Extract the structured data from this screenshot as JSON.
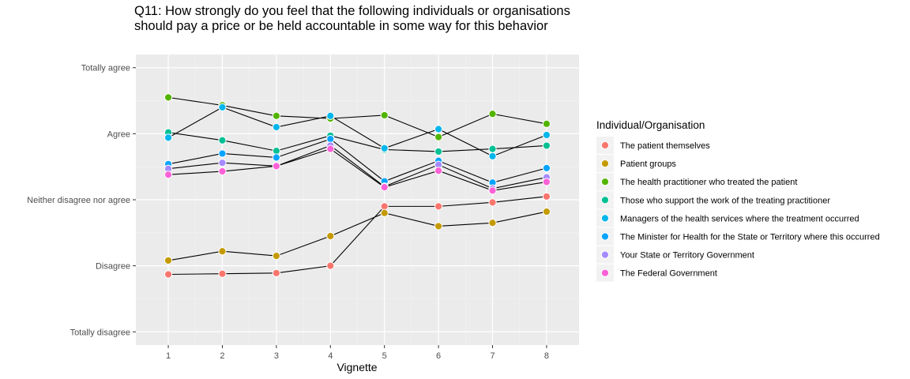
{
  "chart_data": {
    "type": "line",
    "title": "Q11: How strongly do you feel that the following individuals or organisations should pay a price or be held accountable in some way for this behavior",
    "xlabel": "Vignette",
    "ylabel": "",
    "x": [
      1,
      2,
      3,
      4,
      5,
      6,
      7,
      8
    ],
    "xlim": [
      0.4,
      8.6
    ],
    "ylim": [
      0.8,
      5.2
    ],
    "y_ticks": [
      {
        "value": 1,
        "label": "Totally disagree"
      },
      {
        "value": 2,
        "label": "Disagree"
      },
      {
        "value": 3,
        "label": "Neither disagree nor agree"
      },
      {
        "value": 4,
        "label": "Agree"
      },
      {
        "value": 5,
        "label": "Totally agree"
      }
    ],
    "grid": true,
    "legend": {
      "title": "Individual/Organisation",
      "placement": "right"
    },
    "series": [
      {
        "name": "The patient themselves",
        "color": "#F8766D",
        "values": [
          1.87,
          1.88,
          1.89,
          2.0,
          2.9,
          2.9,
          2.96,
          3.05
        ]
      },
      {
        "name": "Patient groups",
        "color": "#C49A00",
        "values": [
          2.08,
          2.22,
          2.15,
          2.45,
          2.8,
          2.6,
          2.65,
          2.82
        ]
      },
      {
        "name": "The health practitioner who treated the patient",
        "color": "#53B400",
        "values": [
          4.55,
          4.43,
          4.27,
          4.23,
          4.28,
          3.95,
          4.3,
          4.15
        ]
      },
      {
        "name": "Those who support the work of the treating practitioner",
        "color": "#00C094",
        "values": [
          4.02,
          3.9,
          3.74,
          3.97,
          3.76,
          3.73,
          3.77,
          3.82
        ]
      },
      {
        "name": "Managers of the health services where the treatment occurred",
        "color": "#00B6EB",
        "values": [
          3.94,
          4.4,
          4.1,
          4.27,
          3.78,
          4.07,
          3.66,
          3.98
        ]
      },
      {
        "name": "The Minister for Health for the State or Territory where this occurred",
        "color": "#06A4FF",
        "values": [
          3.54,
          3.7,
          3.64,
          3.92,
          3.28,
          3.59,
          3.26,
          3.48
        ]
      },
      {
        "name": "Your State or Territory Government",
        "color": "#A58AFF",
        "values": [
          3.47,
          3.56,
          3.51,
          3.82,
          3.2,
          3.53,
          3.17,
          3.34
        ]
      },
      {
        "name": "The Federal Government",
        "color": "#FB61D7",
        "values": [
          3.38,
          3.43,
          3.51,
          3.77,
          3.19,
          3.44,
          3.14,
          3.27
        ]
      }
    ]
  }
}
